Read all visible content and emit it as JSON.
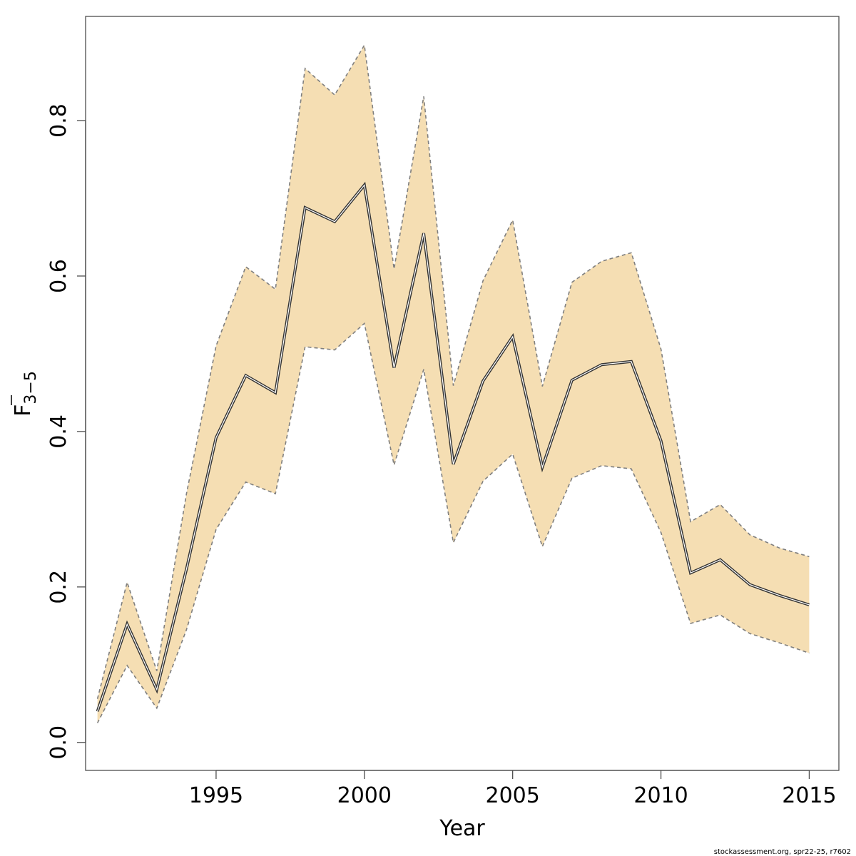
{
  "chart_data": {
    "type": "area",
    "xlabel": "Year",
    "ylabel": {
      "main": "F",
      "subscript": "3−5",
      "overline": true
    },
    "xlim": [
      1990.6,
      2016.0
    ],
    "ylim": [
      -0.036,
      0.934
    ],
    "xticks": [
      1995,
      2000,
      2005,
      2010,
      2015
    ],
    "yticks": [
      0.0,
      0.2,
      0.4,
      0.6,
      0.8
    ],
    "ytick_labels": [
      "0.0",
      "0.2",
      "0.4",
      "0.6",
      "0.8"
    ],
    "xtick_labels": [
      "1995",
      "2000",
      "2005",
      "2010",
      "2015"
    ],
    "grid": false,
    "colors": {
      "band": "#f5deb3",
      "bounds": "#7f7f7f",
      "estimate": "#333333"
    },
    "x": [
      1991,
      1992,
      1993,
      1994,
      1995,
      1996,
      1997,
      1998,
      1999,
      2000,
      2001,
      2002,
      2003,
      2004,
      2005,
      2006,
      2007,
      2008,
      2009,
      2010,
      2011,
      2012,
      2013,
      2014,
      2015
    ],
    "series": [
      {
        "role": "estimate",
        "values": [
          0.04,
          0.152,
          0.068,
          0.223,
          0.392,
          0.472,
          0.45,
          0.688,
          0.67,
          0.717,
          0.482,
          0.655,
          0.358,
          0.465,
          0.522,
          0.354,
          0.466,
          0.486,
          0.49,
          0.388,
          0.218,
          0.235,
          0.203,
          0.189,
          0.177
        ]
      },
      {
        "role": "upper",
        "values": [
          0.056,
          0.206,
          0.092,
          0.32,
          0.51,
          0.612,
          0.583,
          0.867,
          0.833,
          0.897,
          0.609,
          0.831,
          0.459,
          0.594,
          0.672,
          0.458,
          0.592,
          0.619,
          0.63,
          0.506,
          0.284,
          0.306,
          0.267,
          0.25,
          0.239
        ]
      },
      {
        "role": "lower",
        "values": [
          0.025,
          0.099,
          0.044,
          0.145,
          0.274,
          0.335,
          0.32,
          0.509,
          0.505,
          0.539,
          0.357,
          0.48,
          0.257,
          0.336,
          0.371,
          0.252,
          0.34,
          0.356,
          0.352,
          0.27,
          0.153,
          0.164,
          0.14,
          0.128,
          0.115
        ]
      }
    ]
  },
  "footnote": "stockassessment.org, spr22-25, r7602"
}
